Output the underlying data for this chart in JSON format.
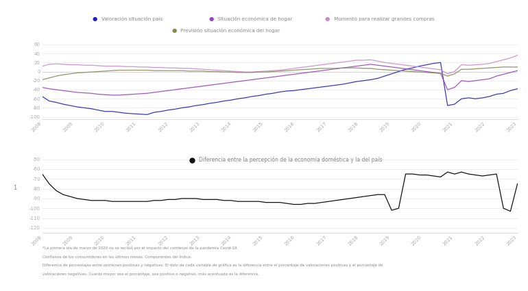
{
  "legend_labels": [
    "Valoración situación país",
    "Situación económica de hogar",
    "Momento para realizar grandes compras",
    "Previsión situación económica del hogar"
  ],
  "legend_colors": [
    "#2222bb",
    "#9944bb",
    "#cc88cc",
    "#888855"
  ],
  "x_labels": [
    "2008",
    "2009",
    "2010",
    "2011",
    "2012",
    "2013",
    "2014",
    "2015",
    "2016",
    "2017",
    "2018",
    "2019",
    "2020",
    "2021",
    "2022",
    "2023"
  ],
  "footnote_lines": [
    "*La primera ola de marzo de 2020 no se recibió por el impacto del comienzo de la pandemia Covid-19.",
    "Confianza de los consumidores en los últimos meses. Componentes del Índice.",
    "Diferencia de porcentajes entre opiniones positivas y negativas. El dato de cada variable de gráfica es la diferencia entre el porcentaje de valoraciones positivas y el porcentaje de",
    "valoraciones negativas. Cuanto mayor sea el porcentaje, sea positivo o negativo, más acentuada es la diferencia."
  ],
  "bottom_legend_label": "Diferencia entre la percepción de la economía doméstica y la del país",
  "bottom_legend_color": "#111111",
  "background_color": "#ffffff",
  "line_color_1": "#2222bb",
  "line_color_2": "#9944bb",
  "line_color_3": "#cc88cc",
  "line_color_4": "#888855",
  "line_color_5": "#111111",
  "top_series": {
    "valoracion": [
      -55,
      -65,
      -68,
      -72,
      -75,
      -78,
      -80,
      -82,
      -85,
      -88,
      -88,
      -90,
      -92,
      -93,
      -94,
      -95,
      -90,
      -88,
      -85,
      -83,
      -80,
      -78,
      -75,
      -73,
      -70,
      -68,
      -65,
      -63,
      -60,
      -58,
      -55,
      -53,
      -50,
      -48,
      -45,
      -43,
      -42,
      -40,
      -38,
      -36,
      -34,
      -32,
      -30,
      -28,
      -25,
      -22,
      -20,
      -18,
      -15,
      -10,
      -5,
      0,
      5,
      8,
      12,
      15,
      18,
      20,
      -75,
      -72,
      -60,
      -58,
      -60,
      -58,
      -55,
      -50,
      -48,
      -42,
      -38
    ],
    "situacion": [
      -35,
      -38,
      -40,
      -42,
      -44,
      -46,
      -47,
      -48,
      -50,
      -51,
      -52,
      -52,
      -51,
      -50,
      -49,
      -48,
      -46,
      -44,
      -42,
      -40,
      -38,
      -36,
      -34,
      -32,
      -30,
      -28,
      -26,
      -24,
      -22,
      -20,
      -18,
      -16,
      -14,
      -12,
      -10,
      -8,
      -6,
      -4,
      -2,
      0,
      2,
      4,
      6,
      8,
      10,
      12,
      14,
      16,
      14,
      12,
      10,
      8,
      6,
      4,
      2,
      0,
      -2,
      -4,
      -40,
      -35,
      -20,
      -22,
      -20,
      -18,
      -16,
      -10,
      -6,
      -2,
      2
    ],
    "momento": [
      12,
      16,
      17,
      16,
      15,
      15,
      14,
      14,
      13,
      12,
      12,
      12,
      11,
      11,
      10,
      10,
      9,
      9,
      8,
      8,
      7,
      7,
      6,
      5,
      4,
      3,
      2,
      1,
      0,
      -1,
      -1,
      0,
      1,
      2,
      3,
      5,
      7,
      9,
      11,
      13,
      15,
      17,
      19,
      21,
      23,
      25,
      25,
      26,
      23,
      20,
      18,
      16,
      14,
      12,
      10,
      8,
      6,
      4,
      -5,
      0,
      15,
      14,
      15,
      16,
      18,
      22,
      26,
      30,
      36
    ],
    "prevision": [
      -18,
      -14,
      -10,
      -7,
      -5,
      -3,
      -2,
      -1,
      0,
      1,
      2,
      3,
      3,
      3,
      3,
      3,
      2,
      2,
      2,
      2,
      2,
      1,
      1,
      1,
      0,
      0,
      -1,
      -1,
      -2,
      -2,
      -2,
      -1,
      -1,
      0,
      1,
      2,
      3,
      4,
      5,
      6,
      7,
      7,
      7,
      8,
      8,
      8,
      7,
      7,
      5,
      4,
      3,
      2,
      1,
      0,
      -1,
      -2,
      -3,
      -4,
      -10,
      -5,
      5,
      5,
      6,
      7,
      8,
      9,
      10,
      10,
      10
    ]
  },
  "bottom_series": {
    "diff": [
      -65,
      -75,
      -82,
      -86,
      -88,
      -90,
      -91,
      -92,
      -92,
      -92,
      -93,
      -93,
      -93,
      -93,
      -93,
      -93,
      -92,
      -92,
      -91,
      -91,
      -90,
      -90,
      -90,
      -91,
      -91,
      -91,
      -92,
      -92,
      -93,
      -93,
      -93,
      -93,
      -94,
      -94,
      -94,
      -95,
      -96,
      -96,
      -95,
      -95,
      -94,
      -93,
      -92,
      -91,
      -90,
      -89,
      -88,
      -87,
      -86,
      -86,
      -102,
      -100,
      -65,
      -65,
      -66,
      -66,
      -67,
      -68,
      -63,
      -65,
      -63,
      -65,
      -66,
      -67,
      -66,
      -65,
      -100,
      -103,
      -75
    ]
  }
}
